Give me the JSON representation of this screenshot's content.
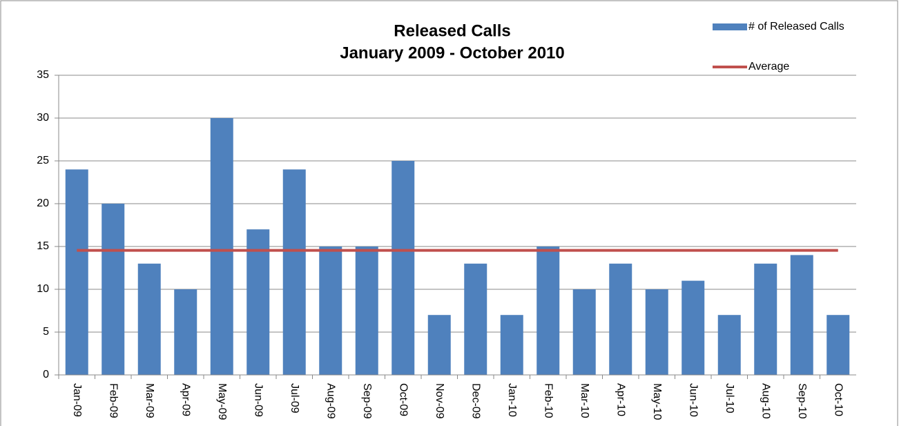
{
  "chart_data": {
    "type": "bar",
    "title": "Released Calls",
    "subtitle": "January 2009 - October 2010",
    "categories": [
      "Jan-09",
      "Feb-09",
      "Mar-09",
      "Apr-09",
      "May-09",
      "Jun-09",
      "Jul-09",
      "Aug-09",
      "Sep-09",
      "Oct-09",
      "Nov-09",
      "Dec-09",
      "Jan-10",
      "Feb-10",
      "Mar-10",
      "Apr-10",
      "May-10",
      "Jun-10",
      "Jul-10",
      "Aug-10",
      "Sep-10",
      "Oct-10"
    ],
    "series": [
      {
        "name": "# of Released Calls",
        "color": "#4f81bd",
        "type": "bar",
        "values": [
          24,
          20,
          13,
          10,
          30,
          17,
          24,
          15,
          15,
          25,
          7,
          13,
          7,
          15,
          10,
          13,
          10,
          11,
          7,
          13,
          14,
          7
        ]
      },
      {
        "name": "Average",
        "color": "#c0504d",
        "type": "line",
        "values": [
          14.55,
          14.55,
          14.55,
          14.55,
          14.55,
          14.55,
          14.55,
          14.55,
          14.55,
          14.55,
          14.55,
          14.55,
          14.55,
          14.55,
          14.55,
          14.55,
          14.55,
          14.55,
          14.55,
          14.55,
          14.55,
          14.55
        ]
      }
    ],
    "ylim": [
      0,
      35
    ],
    "yticks": [
      0,
      5,
      10,
      15,
      20,
      25,
      30,
      35
    ],
    "grid": true
  }
}
